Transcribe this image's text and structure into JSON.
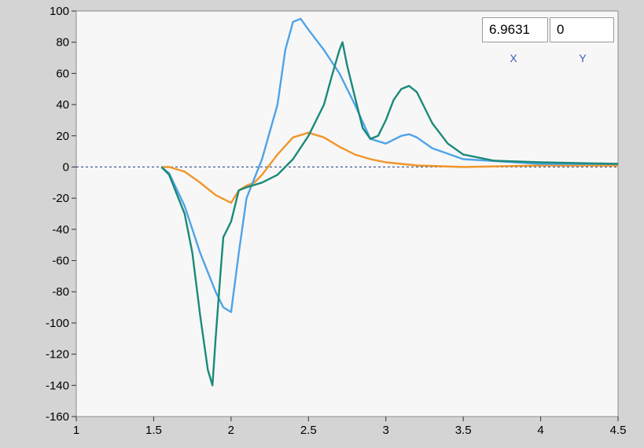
{
  "cursor": {
    "x_value": "6.9631",
    "y_value": "0",
    "x_label": "X",
    "y_label": "Y"
  },
  "chart_data": {
    "type": "line",
    "title": "",
    "xlabel": "",
    "ylabel": "",
    "xlim": [
      1,
      4.5
    ],
    "ylim": [
      -160,
      100
    ],
    "x_ticks": [
      "1",
      "1.5",
      "2",
      "2.5",
      "3",
      "3.5",
      "4",
      "4.5"
    ],
    "y_ticks": [
      "100",
      "80",
      "60",
      "40",
      "20",
      "0",
      "-20",
      "-40",
      "-60",
      "-80",
      "-100",
      "-120",
      "-140",
      "-160"
    ],
    "grid": false,
    "zero_line": true,
    "series": [
      {
        "color": "#f0962a",
        "x": [
          1.55,
          1.6,
          1.7,
          1.8,
          1.9,
          2.0,
          2.05,
          2.1,
          2.15,
          2.2,
          2.3,
          2.4,
          2.5,
          2.6,
          2.7,
          2.8,
          2.9,
          3.0,
          3.2,
          3.5,
          4.0,
          4.5
        ],
        "y": [
          0,
          0,
          -3,
          -10,
          -18,
          -23,
          -15,
          -12,
          -10,
          -5,
          8,
          19,
          22,
          19,
          13,
          8,
          5,
          3,
          1,
          0,
          1,
          1
        ]
      },
      {
        "color": "#4fa3e8",
        "x": [
          1.55,
          1.6,
          1.7,
          1.8,
          1.9,
          1.95,
          2.0,
          2.05,
          2.1,
          2.2,
          2.3,
          2.35,
          2.4,
          2.45,
          2.5,
          2.6,
          2.7,
          2.8,
          2.9,
          3.0,
          3.1,
          3.15,
          3.2,
          3.3,
          3.5,
          4.0,
          4.5
        ],
        "y": [
          0,
          -4,
          -25,
          -55,
          -80,
          -90,
          -93,
          -55,
          -20,
          5,
          40,
          75,
          93,
          95,
          88,
          75,
          60,
          40,
          18,
          15,
          20,
          21,
          19,
          12,
          5,
          2,
          2
        ]
      },
      {
        "color": "#1a8a7a",
        "x": [
          1.55,
          1.6,
          1.7,
          1.75,
          1.8,
          1.85,
          1.88,
          1.9,
          1.93,
          1.95,
          2.0,
          2.05,
          2.1,
          2.2,
          2.3,
          2.4,
          2.5,
          2.6,
          2.65,
          2.7,
          2.72,
          2.75,
          2.8,
          2.85,
          2.9,
          2.95,
          3.0,
          3.05,
          3.1,
          3.15,
          3.2,
          3.3,
          3.4,
          3.5,
          3.7,
          4.0,
          4.5
        ],
        "y": [
          0,
          -5,
          -30,
          -55,
          -95,
          -130,
          -140,
          -110,
          -70,
          -45,
          -35,
          -15,
          -13,
          -10,
          -5,
          5,
          20,
          40,
          58,
          75,
          80,
          65,
          45,
          25,
          18,
          20,
          30,
          43,
          50,
          52,
          48,
          28,
          15,
          8,
          4,
          3,
          2
        ]
      }
    ]
  }
}
